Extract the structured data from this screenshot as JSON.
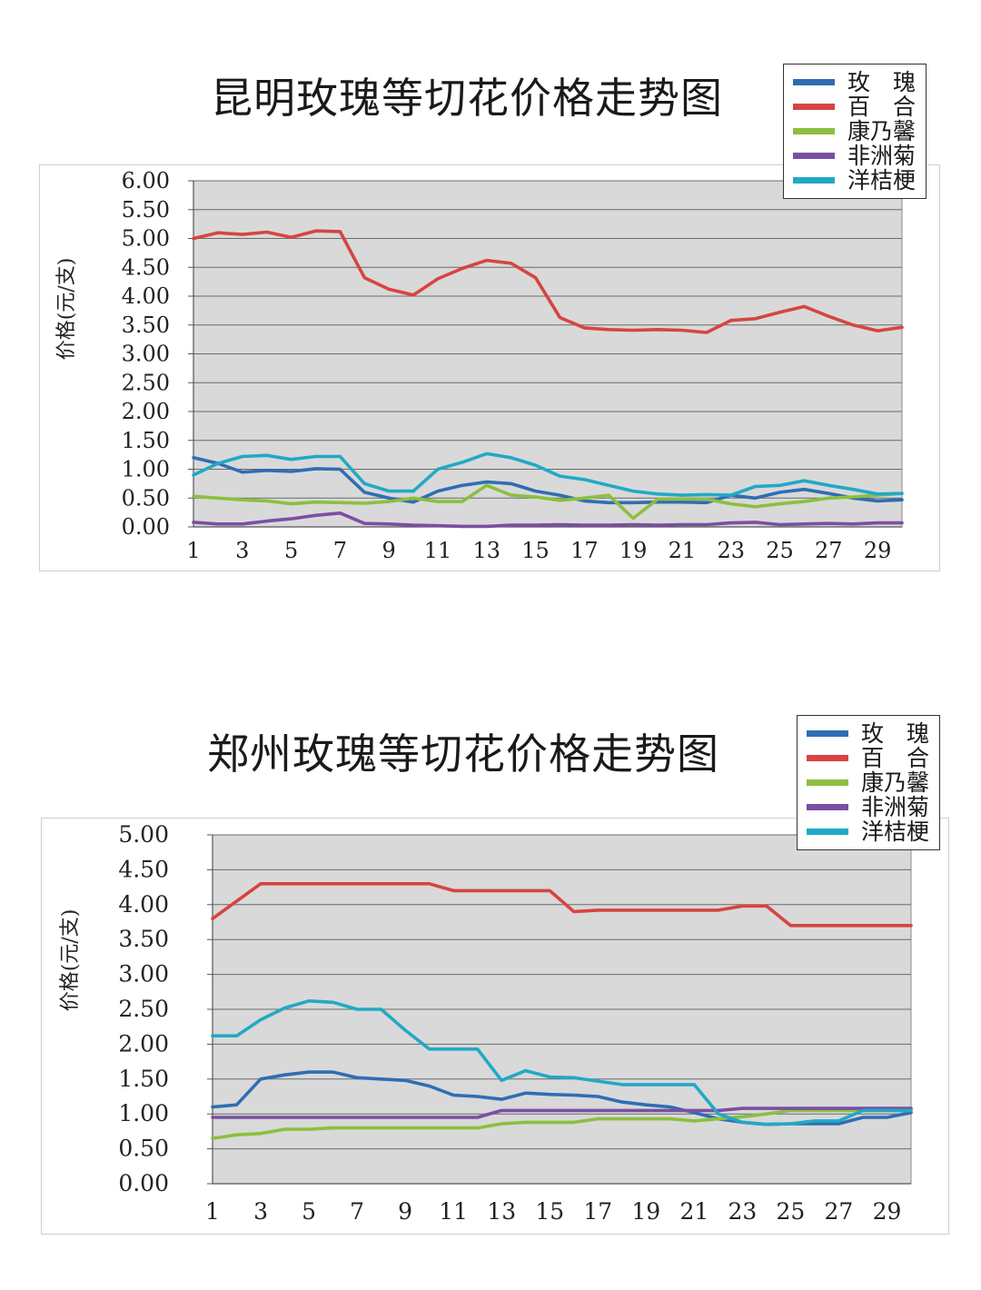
{
  "colors": {
    "rose": "#2f6db3",
    "lily": "#d64541",
    "carnation": "#8cbf3f",
    "gerbera": "#7a4fa3",
    "eustoma": "#21a9c6",
    "plot_bg": "#d9d9d9",
    "grid": "#6b6b6b"
  },
  "chart_data": [
    {
      "type": "line",
      "title": "昆明玫瑰等切花价格走势图",
      "ylabel": "价格(元/支)",
      "xlabel": "",
      "ylim": [
        0,
        6
      ],
      "y_ticks": [
        "0.00",
        "0.50",
        "1.00",
        "1.50",
        "2.00",
        "2.50",
        "3.00",
        "3.50",
        "4.00",
        "4.50",
        "5.00",
        "5.50",
        "6.00"
      ],
      "x_ticks": [
        "1",
        "3",
        "5",
        "7",
        "9",
        "11",
        "13",
        "15",
        "17",
        "19",
        "21",
        "23",
        "25",
        "27",
        "29"
      ],
      "x": [
        1,
        2,
        3,
        4,
        5,
        6,
        7,
        8,
        9,
        10,
        11,
        12,
        13,
        14,
        15,
        16,
        17,
        18,
        19,
        20,
        21,
        22,
        23,
        24,
        25,
        26,
        27,
        28,
        29,
        30
      ],
      "grid": true,
      "legend_position": "top-right",
      "series": [
        {
          "name": "玫　瑰",
          "color_key": "rose",
          "values": [
            1.2,
            1.1,
            0.95,
            0.98,
            0.96,
            1.01,
            1.0,
            0.6,
            0.5,
            0.43,
            0.62,
            0.72,
            0.78,
            0.75,
            0.62,
            0.55,
            0.45,
            0.42,
            0.42,
            0.43,
            0.43,
            0.42,
            0.55,
            0.5,
            0.6,
            0.65,
            0.58,
            0.5,
            0.45,
            0.47
          ]
        },
        {
          "name": "百　合",
          "color_key": "lily",
          "values": [
            5.0,
            5.1,
            5.07,
            5.11,
            5.02,
            5.13,
            5.12,
            4.32,
            4.12,
            4.02,
            4.3,
            4.48,
            4.62,
            4.57,
            4.32,
            3.63,
            3.45,
            3.42,
            3.41,
            3.42,
            3.41,
            3.37,
            3.58,
            3.61,
            3.72,
            3.82,
            3.65,
            3.5,
            3.4,
            3.46
          ]
        },
        {
          "name": "康乃馨",
          "color_key": "carnation",
          "values": [
            0.53,
            0.5,
            0.47,
            0.45,
            0.4,
            0.43,
            0.42,
            0.41,
            0.44,
            0.5,
            0.44,
            0.44,
            0.72,
            0.55,
            0.52,
            0.46,
            0.5,
            0.55,
            0.15,
            0.48,
            0.48,
            0.48,
            0.4,
            0.35,
            0.4,
            0.44,
            0.5,
            0.52,
            0.55,
            0.58
          ]
        },
        {
          "name": "非洲菊",
          "color_key": "gerbera",
          "values": [
            0.08,
            0.05,
            0.05,
            0.1,
            0.14,
            0.2,
            0.24,
            0.06,
            0.05,
            0.03,
            0.02,
            0.01,
            0.01,
            0.03,
            0.03,
            0.04,
            0.03,
            0.03,
            0.04,
            0.03,
            0.04,
            0.04,
            0.07,
            0.08,
            0.04,
            0.05,
            0.06,
            0.05,
            0.07,
            0.07
          ]
        },
        {
          "name": "洋桔梗",
          "color_key": "eustoma",
          "values": [
            0.9,
            1.1,
            1.22,
            1.24,
            1.17,
            1.22,
            1.22,
            0.75,
            0.62,
            0.62,
            1.0,
            1.12,
            1.27,
            1.2,
            1.07,
            0.88,
            0.82,
            0.72,
            0.62,
            0.57,
            0.55,
            0.56,
            0.55,
            0.7,
            0.72,
            0.8,
            0.72,
            0.65,
            0.57,
            0.58
          ]
        }
      ]
    },
    {
      "type": "line",
      "title": "郑州玫瑰等切花价格走势图",
      "ylabel": "价格(元/支)",
      "xlabel": "",
      "ylim": [
        0,
        5
      ],
      "y_ticks": [
        "0.00",
        "0.50",
        "1.00",
        "1.50",
        "2.00",
        "2.50",
        "3.00",
        "3.50",
        "4.00",
        "4.50",
        "5.00"
      ],
      "x_ticks": [
        "1",
        "3",
        "5",
        "7",
        "9",
        "11",
        "13",
        "15",
        "17",
        "19",
        "21",
        "23",
        "25",
        "27",
        "29"
      ],
      "x": [
        1,
        2,
        3,
        4,
        5,
        6,
        7,
        8,
        9,
        10,
        11,
        12,
        13,
        14,
        15,
        16,
        17,
        18,
        19,
        20,
        21,
        22,
        23,
        24,
        25,
        26,
        27,
        28,
        29,
        30
      ],
      "grid": true,
      "legend_position": "top-right",
      "series": [
        {
          "name": "玫　瑰",
          "color_key": "rose",
          "values": [
            1.1,
            1.13,
            1.5,
            1.56,
            1.6,
            1.6,
            1.52,
            1.5,
            1.48,
            1.4,
            1.27,
            1.25,
            1.21,
            1.3,
            1.28,
            1.27,
            1.25,
            1.17,
            1.13,
            1.1,
            1.02,
            0.93,
            0.88,
            0.85,
            0.86,
            0.86,
            0.86,
            0.95,
            0.95,
            1.02
          ]
        },
        {
          "name": "百　合",
          "color_key": "lily",
          "values": [
            3.8,
            4.05,
            4.3,
            4.3,
            4.3,
            4.3,
            4.3,
            4.3,
            4.3,
            4.3,
            4.2,
            4.2,
            4.2,
            4.2,
            4.2,
            3.9,
            3.92,
            3.92,
            3.92,
            3.92,
            3.92,
            3.92,
            3.98,
            3.98,
            3.7,
            3.7,
            3.7,
            3.7,
            3.7,
            3.7
          ]
        },
        {
          "name": "康乃馨",
          "color_key": "carnation",
          "values": [
            0.65,
            0.7,
            0.72,
            0.78,
            0.78,
            0.8,
            0.8,
            0.8,
            0.8,
            0.8,
            0.8,
            0.8,
            0.86,
            0.88,
            0.88,
            0.88,
            0.93,
            0.93,
            0.93,
            0.93,
            0.9,
            0.93,
            0.96,
            1.0,
            1.05,
            1.05,
            1.05,
            1.05,
            1.05,
            1.05
          ]
        },
        {
          "name": "非洲菊",
          "color_key": "gerbera",
          "values": [
            0.95,
            0.95,
            0.95,
            0.95,
            0.95,
            0.95,
            0.95,
            0.95,
            0.95,
            0.95,
            0.95,
            0.95,
            1.05,
            1.05,
            1.05,
            1.05,
            1.05,
            1.05,
            1.05,
            1.05,
            1.05,
            1.05,
            1.08,
            1.08,
            1.08,
            1.08,
            1.08,
            1.08,
            1.08,
            1.08
          ]
        },
        {
          "name": "洋桔梗",
          "color_key": "eustoma",
          "values": [
            2.12,
            2.12,
            2.35,
            2.52,
            2.62,
            2.6,
            2.5,
            2.5,
            2.2,
            1.93,
            1.93,
            1.93,
            1.48,
            1.62,
            1.53,
            1.52,
            1.47,
            1.42,
            1.42,
            1.42,
            1.42,
            1.0,
            0.88,
            0.85,
            0.86,
            0.9,
            0.9,
            1.05,
            1.05,
            1.05
          ]
        }
      ]
    }
  ]
}
